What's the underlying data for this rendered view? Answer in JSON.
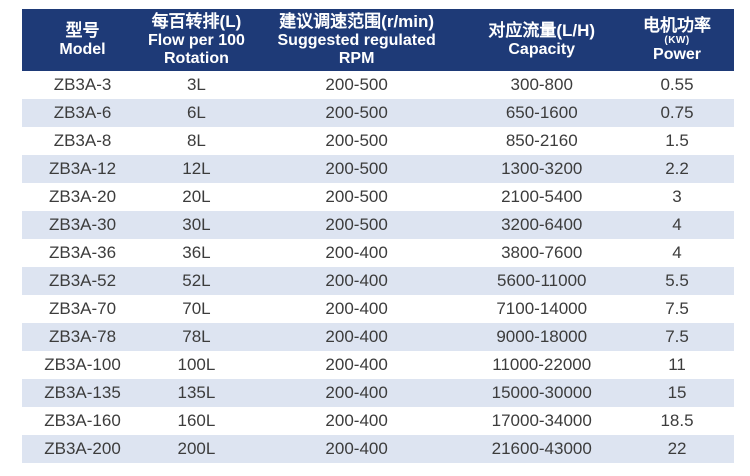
{
  "colors": {
    "header_bg": "#1e3a77",
    "header_text": "#ffffff",
    "stripe_bg": "#dde4f1",
    "row_bg": "#ffffff",
    "body_text": "#3c3c3c"
  },
  "table": {
    "columns": [
      {
        "id": "model",
        "lines": [
          "型号",
          "Model"
        ]
      },
      {
        "id": "flow-per-100-rotation",
        "lines": [
          "每百转排(L)",
          "Flow per 100",
          "Rotation"
        ]
      },
      {
        "id": "suggested-rpm",
        "lines": [
          "建议调速范围(r/min)",
          "Suggested regulated",
          "RPM"
        ]
      },
      {
        "id": "capacity",
        "lines": [
          "对应流量(L/H)",
          "Capacity"
        ]
      },
      {
        "id": "power",
        "lines": [
          "电机功率",
          "(KW)",
          "Power"
        ]
      }
    ],
    "rows": [
      [
        "ZB3A-3",
        "3L",
        "200-500",
        "300-800",
        "0.55"
      ],
      [
        "ZB3A-6",
        "6L",
        "200-500",
        "650-1600",
        "0.75"
      ],
      [
        "ZB3A-8",
        "8L",
        "200-500",
        "850-2160",
        "1.5"
      ],
      [
        "ZB3A-12",
        "12L",
        "200-500",
        "1300-3200",
        "2.2"
      ],
      [
        "ZB3A-20",
        "20L",
        "200-500",
        "2100-5400",
        "3"
      ],
      [
        "ZB3A-30",
        "30L",
        "200-500",
        "3200-6400",
        "4"
      ],
      [
        "ZB3A-36",
        "36L",
        "200-400",
        "3800-7600",
        "4"
      ],
      [
        "ZB3A-52",
        "52L",
        "200-400",
        "5600-11000",
        "5.5"
      ],
      [
        "ZB3A-70",
        "70L",
        "200-400",
        "7100-14000",
        "7.5"
      ],
      [
        "ZB3A-78",
        "78L",
        "200-400",
        "9000-18000",
        "7.5"
      ],
      [
        "ZB3A-100",
        "100L",
        "200-400",
        "11000-22000",
        "11"
      ],
      [
        "ZB3A-135",
        "135L",
        "200-400",
        "15000-30000",
        "15"
      ],
      [
        "ZB3A-160",
        "160L",
        "200-400",
        "17000-34000",
        "18.5"
      ],
      [
        "ZB3A-200",
        "200L",
        "200-400",
        "21600-43000",
        "22"
      ]
    ]
  }
}
